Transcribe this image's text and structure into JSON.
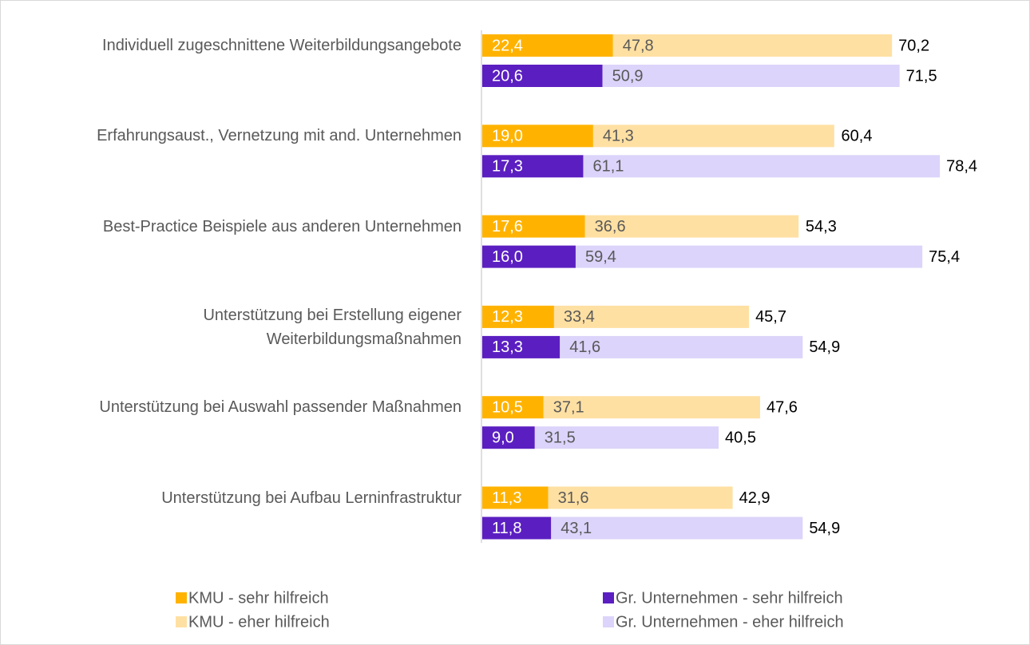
{
  "chart_data": {
    "type": "bar",
    "orientation": "horizontal",
    "categories": [
      "Individuell zugeschnittene Weiterbildungsangebote",
      "Erfahrungsaust., Vernetzung mit and. Unternehmen",
      "Best-Practice Beispiele aus anderen Unternehmen",
      "Unterstützung bei Erstellung eigener\nWeiterbildungsmaßnahmen",
      "Unterstützung bei Auswahl passender Maßnahmen",
      "Unterstützung bei Aufbau Lerninfrastruktur"
    ],
    "series": [
      {
        "name": "KMU - sehr hilfreich",
        "color": "#ffb300",
        "values": [
          22.4,
          19.0,
          17.6,
          12.3,
          10.5,
          11.3
        ],
        "value_labels": [
          "22,4",
          "19,0",
          "17,6",
          "12,3",
          "10,5",
          "11,3"
        ]
      },
      {
        "name": "KMU - eher hilfreich",
        "color": "#ffe0a3",
        "values": [
          47.8,
          41.3,
          36.6,
          33.4,
          37.1,
          31.6
        ],
        "value_labels": [
          "47,8",
          "41,3",
          "36,6",
          "33,4",
          "37,1",
          "31,6"
        ]
      },
      {
        "name": "Gr. Unternehmen - sehr hilfreich",
        "color": "#5b1fc1",
        "values": [
          20.6,
          17.3,
          16.0,
          13.3,
          9.0,
          11.8
        ],
        "value_labels": [
          "20,6",
          "17,3",
          "16,0",
          "13,3",
          "9,0",
          "11,8"
        ]
      },
      {
        "name": "Gr. Unternehmen - eher hilfreich",
        "color": "#dcd4fa",
        "values": [
          50.9,
          61.1,
          59.4,
          41.6,
          31.5,
          43.1
        ],
        "value_labels": [
          "50,9",
          "61,1",
          "59,4",
          "41,6",
          "31,5",
          "43,1"
        ]
      }
    ],
    "totals": [
      {
        "values": [
          70.2,
          60.4,
          54.3,
          45.7,
          47.6,
          42.9
        ],
        "value_labels": [
          "70,2",
          "60,4",
          "54,3",
          "45,7",
          "47,6",
          "42,9"
        ]
      },
      {
        "values": [
          71.5,
          78.4,
          75.4,
          54.9,
          40.5,
          54.9
        ],
        "value_labels": [
          "71,5",
          "78,4",
          "75,4",
          "54,9",
          "40,5",
          "54,9"
        ]
      }
    ]
  }
}
